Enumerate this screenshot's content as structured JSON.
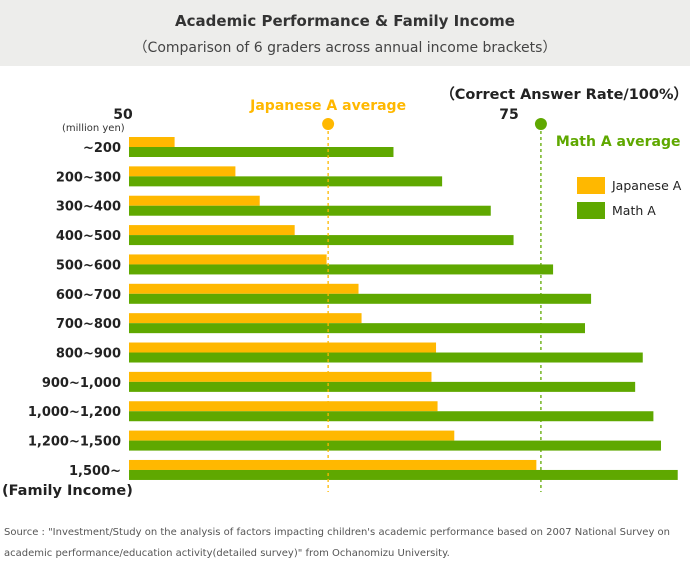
{
  "header": {
    "title": "Academic Performance & Family Income",
    "subtitle": "（Comparison of 6 graders across annual income brackets）"
  },
  "chart_data": {
    "type": "bar",
    "orientation": "horizontal",
    "title": "Academic Performance & Family Income",
    "subtitle": "（Comparison of 6 graders across annual income brackets）",
    "xlabel": "（Correct Answer Rate/100%）",
    "ylabel": "(Family Income)",
    "y_unit": "(million yen)",
    "categories": [
      "~200",
      "200~300",
      "300~400",
      "400~500",
      "500~600",
      "600~700",
      "700~800",
      "800~900",
      "900~1,000",
      "1,000~1,200",
      "1,200~1,500",
      "1,500~"
    ],
    "series": [
      {
        "name": "Japanese A",
        "color": "#ffb800",
        "values": [
          53.0,
          57.0,
          58.6,
          60.9,
          63.0,
          65.1,
          65.3,
          70.2,
          69.9,
          70.3,
          71.4,
          76.8
        ]
      },
      {
        "name": "Math A",
        "color": "#5fa800",
        "values": [
          67.4,
          70.6,
          73.8,
          75.3,
          77.9,
          80.4,
          80.0,
          83.8,
          83.3,
          84.5,
          85.0,
          86.1
        ]
      }
    ],
    "xlim": [
      50,
      86.5
    ],
    "x_ticks": [
      50,
      75
    ],
    "reference_lines": [
      {
        "label": "Japanese A average",
        "value": 63.1,
        "color": "#ffb800"
      },
      {
        "label": "Math A average",
        "value": 77.1,
        "color": "#5fa800"
      }
    ],
    "legend_position": "top-right",
    "grid": false
  },
  "footer": {
    "source": "Source : \"Investment/Study on the analysis of factors impacting children's academic performance based on 2007 National Survey on academic performance/education activity(detailed survey)\" from Ochanomizu University."
  }
}
